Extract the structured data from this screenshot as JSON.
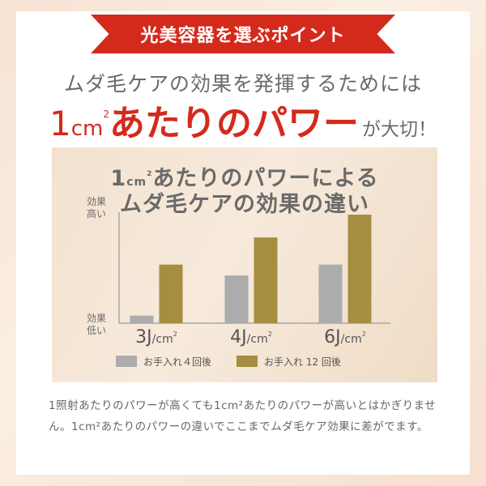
{
  "banner": {
    "text": "光美容器を選ぶポイント"
  },
  "lead": {
    "line1": "ムダ毛ケアの効果を発揮するためには",
    "line2": {
      "num": "1",
      "unit": "cm",
      "sup": "2",
      "emph": "あたりのパワー",
      "tail": "が大切！"
    }
  },
  "colors": {
    "accent_red": "#d42a1c",
    "gray_bar": "#acacac",
    "gold_bar": "#a58e3f"
  },
  "chart_data": {
    "type": "bar",
    "title_line1_num": "1",
    "title_line1_unit": "cm",
    "title_line1_sup": "2",
    "title_line1_rest": "あたりのパワーによる",
    "title_line2": "ムダ毛ケアの効果の違い",
    "ylabel_top": "効果高い",
    "ylabel_bottom": "効果低い",
    "categories": [
      {
        "num": "3J",
        "unit": "/cm",
        "sup": "2"
      },
      {
        "num": "4J",
        "unit": "/cm",
        "sup": "2"
      },
      {
        "num": "6J",
        "unit": "/cm",
        "sup": "2"
      }
    ],
    "series": [
      {
        "name": "お手入れ４回後",
        "color": "#acacac",
        "values": [
          7,
          44,
          54
        ]
      },
      {
        "name": "お手入れ 12 回後",
        "color": "#a58e3f",
        "values": [
          54,
          79,
          100
        ]
      }
    ],
    "ylim": [
      0,
      100
    ],
    "grid": false,
    "legend_position": "bottom"
  },
  "body": {
    "paragraph": "1照射あたりのパワーが高くても1cm²あたりのパワーが高いとはかぎりません。1cm²あたりのパワーの違いでここまでムダ毛ケア効果に差がでます。"
  }
}
